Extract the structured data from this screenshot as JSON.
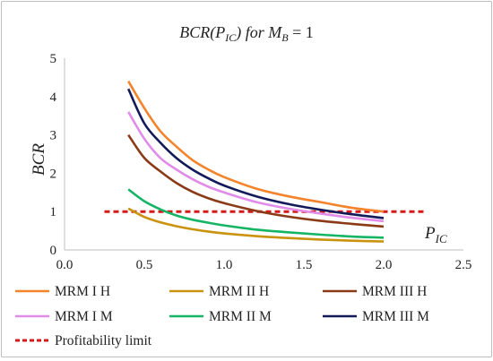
{
  "chart_data": {
    "type": "line",
    "title": {
      "prefix": "BCR(P",
      "sub": "IC",
      "mid": ") for M",
      "sub2": "B",
      "suffix": " = 1"
    },
    "xlabel": {
      "main": "P",
      "sub": "IC"
    },
    "ylabel": "BCR",
    "xlim": [
      0,
      2.5
    ],
    "ylim": [
      0,
      5
    ],
    "xticks": [
      "0.0",
      "0.5",
      "1.0",
      "1.5",
      "2.0",
      "2.5"
    ],
    "yticks": [
      "0",
      "1",
      "2",
      "3",
      "4",
      "5"
    ],
    "grid": false,
    "legend_position": "bottom",
    "x": [
      0.4,
      0.5,
      0.6,
      0.7,
      0.8,
      0.9,
      1.0,
      1.2,
      1.4,
      1.6,
      1.8,
      2.0
    ],
    "series": [
      {
        "name": "MRM I H",
        "color": "#f4842c",
        "values": [
          4.4,
          3.7,
          3.1,
          2.7,
          2.35,
          2.1,
          1.9,
          1.6,
          1.4,
          1.25,
          1.1,
          1.0
        ]
      },
      {
        "name": "MRM II H",
        "color": "#c9930f",
        "values": [
          1.08,
          0.86,
          0.72,
          0.62,
          0.54,
          0.48,
          0.43,
          0.36,
          0.31,
          0.27,
          0.24,
          0.22
        ]
      },
      {
        "name": "MRM III H",
        "color": "#8b3a17",
        "values": [
          3.0,
          2.4,
          2.05,
          1.75,
          1.52,
          1.35,
          1.22,
          1.02,
          0.87,
          0.76,
          0.68,
          0.61
        ]
      },
      {
        "name": "MRM I M",
        "color": "#e08ce8",
        "values": [
          3.6,
          2.9,
          2.4,
          2.1,
          1.85,
          1.65,
          1.5,
          1.25,
          1.08,
          0.95,
          0.84,
          0.75
        ]
      },
      {
        "name": "MRM II M",
        "color": "#16b565",
        "values": [
          1.58,
          1.27,
          1.06,
          0.9,
          0.79,
          0.71,
          0.64,
          0.53,
          0.46,
          0.4,
          0.35,
          0.32
        ]
      },
      {
        "name": "MRM III M",
        "color": "#121a5a",
        "values": [
          4.2,
          3.3,
          2.8,
          2.4,
          2.1,
          1.87,
          1.68,
          1.4,
          1.2,
          1.05,
          0.93,
          0.83
        ]
      }
    ],
    "reference_line": {
      "name": "Profitability limit",
      "color": "#d61a1a",
      "y": 1,
      "x_range": [
        0.25,
        2.25
      ],
      "style": "dashed"
    }
  }
}
